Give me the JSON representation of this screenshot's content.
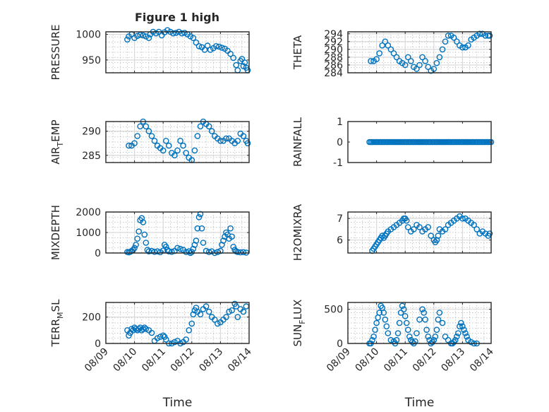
{
  "figure": {
    "title": "Figure 1 high"
  },
  "chart_data": [
    {
      "type": "scatter",
      "title": "Figure 1 high",
      "ylabel": "PRESSURE",
      "xlabel": "",
      "ylim": [
        925,
        1005
      ],
      "yticks": [
        950,
        1000
      ],
      "ytick_labels": [
        "950",
        "1000"
      ],
      "xlim": [
        "08/09",
        "08/14"
      ],
      "show_xticklabels": false,
      "grid": true,
      "color": "#0072BD",
      "x": [
        9.75,
        9.8,
        9.9,
        10.0,
        10.1,
        10.2,
        10.3,
        10.4,
        10.5,
        10.55,
        10.65,
        10.75,
        10.85,
        10.95,
        11.05,
        11.15,
        11.25,
        11.35,
        11.45,
        11.55,
        11.65,
        11.75,
        11.85,
        11.95,
        12.05,
        12.15,
        12.25,
        12.35,
        12.45,
        12.55,
        12.65,
        12.75,
        12.85,
        12.95,
        13.05,
        13.15,
        13.25,
        13.35,
        13.45,
        13.55,
        13.6,
        13.7,
        13.75,
        13.8,
        13.85,
        13.9,
        13.95
      ],
      "y": [
        990,
        996,
        1000,
        993,
        997,
        999,
        998,
        996,
        993,
        1000,
        1005,
        1002,
        1005,
        998,
        1004,
        1008,
        1005,
        1002,
        1003,
        1005,
        1002,
        1003,
        1000,
        996,
        993,
        984,
        977,
        975,
        970,
        978,
        970,
        973,
        977,
        976,
        974,
        972,
        968,
        962,
        954,
        940,
        930,
        948,
        952,
        938,
        945,
        935,
        930
      ]
    },
    {
      "type": "scatter",
      "ylabel": "THETA",
      "xlabel": "",
      "ylim": [
        284,
        294.5
      ],
      "yticks": [
        284,
        286,
        288,
        290,
        292,
        294
      ],
      "ytick_labels": [
        "284",
        "286",
        "288",
        "290",
        "292",
        "294"
      ],
      "xlim": [
        "08/09",
        "08/14"
      ],
      "show_xticklabels": false,
      "grid": true,
      "color": "#0072BD",
      "x": [
        9.8,
        9.9,
        10.0,
        10.1,
        10.2,
        10.3,
        10.4,
        10.5,
        10.6,
        10.7,
        10.8,
        10.9,
        11.0,
        11.1,
        11.2,
        11.3,
        11.4,
        11.5,
        11.6,
        11.7,
        11.8,
        11.9,
        12.0,
        12.1,
        12.2,
        12.3,
        12.4,
        12.5,
        12.6,
        12.7,
        12.8,
        12.9,
        13.0,
        13.1,
        13.2,
        13.3,
        13.4,
        13.5,
        13.6,
        13.7,
        13.8,
        13.9,
        13.95
      ],
      "y": [
        287,
        287,
        287.5,
        289,
        291,
        292,
        291,
        290,
        289,
        288,
        287,
        286.5,
        286,
        288,
        287,
        285.5,
        285,
        286,
        288,
        287,
        285.5,
        284.5,
        285,
        286.5,
        288,
        290,
        292,
        293.5,
        293.5,
        293,
        292,
        291,
        290.5,
        290.5,
        291,
        292.5,
        293,
        293.5,
        294,
        294,
        293.5,
        293.5,
        293.5
      ]
    },
    {
      "type": "scatter",
      "ylabel": "AIR_TEMP",
      "xlabel": "",
      "ylim": [
        283.5,
        292
      ],
      "yticks": [
        285,
        290
      ],
      "ytick_labels": [
        "285",
        "290"
      ],
      "xlim": [
        "08/09",
        "08/14"
      ],
      "show_xticklabels": false,
      "grid": true,
      "color": "#0072BD",
      "x": [
        9.8,
        9.9,
        10.0,
        10.1,
        10.2,
        10.3,
        10.4,
        10.5,
        10.6,
        10.7,
        10.8,
        10.9,
        11.0,
        11.1,
        11.2,
        11.3,
        11.4,
        11.5,
        11.6,
        11.7,
        11.8,
        11.9,
        12.0,
        12.1,
        12.2,
        12.3,
        12.4,
        12.5,
        12.6,
        12.7,
        12.8,
        12.9,
        13.0,
        13.1,
        13.2,
        13.3,
        13.4,
        13.5,
        13.6,
        13.7,
        13.8,
        13.9,
        13.95
      ],
      "y": [
        287,
        287,
        287.5,
        289,
        291,
        292,
        291,
        290,
        289,
        288,
        287,
        286.5,
        286,
        288,
        287,
        285.5,
        285,
        286,
        288,
        287,
        285.5,
        284.5,
        284,
        286,
        289,
        291,
        292,
        291.5,
        291,
        290,
        289,
        288.5,
        288,
        288,
        288.5,
        288.5,
        288,
        287.5,
        288,
        289.5,
        289,
        288,
        287.5
      ]
    },
    {
      "type": "scatter",
      "ylabel": "RAINFALL",
      "xlabel": "",
      "ylim": [
        -1,
        1
      ],
      "yticks": [
        -1,
        0,
        1
      ],
      "ytick_labels": [
        "-1",
        "0",
        "1"
      ],
      "xlim": [
        "08/09",
        "08/14"
      ],
      "show_xticklabels": false,
      "grid": false,
      "color": "#0072BD",
      "x": [
        9.75,
        9.8,
        9.85,
        9.9,
        9.95,
        10.0,
        10.05,
        10.1,
        10.15,
        10.2,
        10.25,
        10.3,
        10.35,
        10.4,
        10.45,
        10.5,
        10.55,
        10.6,
        10.65,
        10.7,
        10.75,
        10.8,
        10.85,
        10.9,
        10.95,
        11.0,
        11.05,
        11.1,
        11.15,
        11.2,
        11.25,
        11.3,
        11.35,
        11.4,
        11.45,
        11.5,
        11.55,
        11.6,
        11.65,
        11.7,
        11.75,
        11.8,
        11.85,
        11.9,
        11.95,
        12.0,
        12.05,
        12.1,
        12.15,
        12.2,
        12.25,
        12.3,
        12.35,
        12.4,
        12.45,
        12.5,
        12.55,
        12.6,
        12.65,
        12.7,
        12.75,
        12.8,
        12.85,
        12.9,
        12.95,
        13.0,
        13.05,
        13.1,
        13.15,
        13.2,
        13.25,
        13.3,
        13.35,
        13.4,
        13.45,
        13.5,
        13.55,
        13.6,
        13.65,
        13.7,
        13.75,
        13.8,
        13.85,
        13.9,
        13.95,
        14.0
      ],
      "y": [
        0,
        0,
        0,
        0,
        0,
        0,
        0,
        0,
        0,
        0,
        0,
        0,
        0,
        0,
        0,
        0,
        0,
        0,
        0,
        0,
        0,
        0,
        0,
        0,
        0,
        0,
        0,
        0,
        0,
        0,
        0,
        0,
        0,
        0,
        0,
        0,
        0,
        0,
        0,
        0,
        0,
        0,
        0,
        0,
        0,
        0,
        0,
        0,
        0,
        0,
        0,
        0,
        0,
        0,
        0,
        0,
        0,
        0,
        0,
        0,
        0,
        0,
        0,
        0,
        0,
        0,
        0,
        0,
        0,
        0,
        0,
        0,
        0,
        0,
        0,
        0,
        0,
        0,
        0,
        0,
        0,
        0,
        0,
        0,
        0,
        0
      ]
    },
    {
      "type": "scatter",
      "ylabel": "MIXDEPTH",
      "xlabel": "",
      "ylim": [
        0,
        2000
      ],
      "yticks": [
        0,
        1000,
        2000
      ],
      "ytick_labels": [
        "0",
        "1000",
        "2000"
      ],
      "xlim": [
        "08/09",
        "08/14"
      ],
      "show_xticklabels": false,
      "grid": true,
      "color": "#0072BD",
      "x": [
        9.75,
        9.8,
        9.85,
        9.9,
        9.95,
        10.0,
        10.05,
        10.1,
        10.15,
        10.2,
        10.25,
        10.3,
        10.35,
        10.4,
        10.45,
        10.5,
        10.6,
        10.7,
        10.8,
        10.9,
        11.0,
        11.05,
        11.1,
        11.15,
        11.2,
        11.3,
        11.4,
        11.5,
        11.6,
        11.7,
        11.8,
        11.9,
        11.95,
        12.0,
        12.05,
        12.1,
        12.15,
        12.2,
        12.25,
        12.3,
        12.35,
        12.4,
        12.5,
        12.6,
        12.7,
        12.8,
        12.9,
        13.0,
        13.05,
        13.1,
        13.15,
        13.2,
        13.25,
        13.3,
        13.35,
        13.4,
        13.45,
        13.5,
        13.55,
        13.6,
        13.7,
        13.8,
        13.9
      ],
      "y": [
        50,
        30,
        60,
        100,
        150,
        250,
        400,
        700,
        1050,
        1600,
        1700,
        1500,
        900,
        500,
        150,
        80,
        100,
        60,
        80,
        40,
        120,
        400,
        300,
        150,
        80,
        60,
        100,
        250,
        200,
        150,
        50,
        80,
        0,
        50,
        200,
        400,
        600,
        1200,
        1750,
        1900,
        1200,
        500,
        100,
        50,
        80,
        0,
        50,
        100,
        400,
        600,
        800,
        1000,
        900,
        700,
        1200,
        800,
        300,
        150,
        80,
        50,
        30,
        40,
        20
      ]
    },
    {
      "type": "scatter",
      "ylabel": "H2OMIXRA",
      "xlabel": "",
      "ylim": [
        5.4,
        7.3
      ],
      "yticks": [
        6,
        7
      ],
      "ytick_labels": [
        "6",
        "7"
      ],
      "xlim": [
        "08/09",
        "08/14"
      ],
      "show_xticklabels": false,
      "grid": true,
      "color": "#0072BD",
      "x": [
        9.85,
        9.9,
        9.95,
        10.0,
        10.05,
        10.1,
        10.15,
        10.2,
        10.25,
        10.3,
        10.35,
        10.4,
        10.5,
        10.6,
        10.7,
        10.8,
        10.9,
        10.95,
        11.0,
        11.05,
        11.1,
        11.2,
        11.3,
        11.4,
        11.5,
        11.6,
        11.7,
        11.8,
        11.9,
        12.0,
        12.05,
        12.1,
        12.15,
        12.2,
        12.3,
        12.4,
        12.5,
        12.6,
        12.7,
        12.8,
        12.9,
        13.0,
        13.1,
        13.2,
        13.3,
        13.4,
        13.5,
        13.6,
        13.7,
        13.8,
        13.9,
        13.95
      ],
      "y": [
        5.5,
        5.6,
        5.7,
        5.8,
        5.9,
        6.0,
        6.1,
        6.2,
        6.1,
        6.2,
        6.3,
        6.4,
        6.5,
        6.6,
        6.7,
        6.8,
        6.9,
        7.0,
        7.0,
        6.9,
        6.6,
        6.4,
        6.5,
        6.7,
        6.6,
        6.4,
        6.5,
        6.6,
        6.2,
        6.0,
        5.9,
        6.0,
        6.2,
        6.5,
        6.4,
        6.5,
        6.7,
        6.8,
        6.9,
        7.0,
        7.1,
        7.0,
        7.0,
        6.9,
        6.8,
        6.7,
        6.5,
        6.3,
        6.4,
        6.3,
        6.2,
        6.3
      ]
    },
    {
      "type": "scatter",
      "ylabel": "TERR_MSL",
      "xlabel": "Time",
      "ylim": [
        0,
        310
      ],
      "yticks": [
        0,
        200
      ],
      "ytick_labels": [
        "0",
        "200"
      ],
      "xlim": [
        "08/09",
        "08/14"
      ],
      "x_ticks": [
        "08/09",
        "08/10",
        "08/11",
        "08/12",
        "08/13",
        "08/14"
      ],
      "show_xticklabels": true,
      "grid": true,
      "color": "#0072BD",
      "x": [
        9.75,
        9.8,
        9.85,
        9.9,
        9.95,
        10.0,
        10.05,
        10.1,
        10.15,
        10.2,
        10.25,
        10.3,
        10.35,
        10.4,
        10.5,
        10.6,
        10.7,
        10.8,
        10.9,
        11.0,
        11.05,
        11.1,
        11.2,
        11.3,
        11.4,
        11.5,
        11.6,
        11.7,
        11.8,
        11.9,
        12.0,
        12.05,
        12.1,
        12.15,
        12.2,
        12.3,
        12.4,
        12.5,
        12.6,
        12.7,
        12.8,
        12.9,
        13.0,
        13.1,
        13.2,
        13.3,
        13.4,
        13.5,
        13.55,
        13.6,
        13.7,
        13.8,
        13.9
      ],
      "y": [
        100,
        60,
        80,
        110,
        100,
        120,
        110,
        100,
        110,
        120,
        100,
        110,
        120,
        110,
        100,
        80,
        20,
        40,
        50,
        60,
        50,
        30,
        0,
        0,
        10,
        20,
        0,
        10,
        30,
        100,
        150,
        220,
        250,
        270,
        240,
        220,
        260,
        280,
        240,
        200,
        180,
        150,
        160,
        180,
        200,
        240,
        250,
        300,
        280,
        200,
        260,
        240,
        280
      ]
    },
    {
      "type": "scatter",
      "ylabel": "SUN_FLUX",
      "xlabel": "Time",
      "ylim": [
        0,
        600
      ],
      "yticks": [
        0,
        500
      ],
      "ytick_labels": [
        "0",
        "500"
      ],
      "xlim": [
        "08/09",
        "08/14"
      ],
      "x_ticks": [
        "08/09",
        "08/10",
        "08/11",
        "08/12",
        "08/13",
        "08/14"
      ],
      "show_xticklabels": true,
      "grid": true,
      "color": "#0072BD",
      "x": [
        9.75,
        9.8,
        9.85,
        9.9,
        9.95,
        10.0,
        10.05,
        10.1,
        10.15,
        10.2,
        10.25,
        10.3,
        10.35,
        10.4,
        10.5,
        10.6,
        10.65,
        10.7,
        10.75,
        10.8,
        10.85,
        10.9,
        10.95,
        11.0,
        11.05,
        11.1,
        11.15,
        11.2,
        11.25,
        11.3,
        11.35,
        11.4,
        11.5,
        11.6,
        11.65,
        11.7,
        11.75,
        11.8,
        11.85,
        11.9,
        11.95,
        12.0,
        12.05,
        12.1,
        12.15,
        12.2,
        12.3,
        12.4,
        12.5,
        12.6,
        12.65,
        12.7,
        12.75,
        12.8,
        12.85,
        12.9,
        12.95,
        13.0,
        13.05,
        13.1,
        13.15,
        13.2,
        13.3,
        13.4,
        13.5
      ],
      "y": [
        0,
        0,
        50,
        100,
        200,
        300,
        380,
        450,
        550,
        520,
        450,
        350,
        250,
        150,
        50,
        30,
        0,
        50,
        150,
        300,
        450,
        550,
        500,
        400,
        300,
        200,
        100,
        50,
        20,
        0,
        30,
        150,
        350,
        500,
        450,
        350,
        200,
        100,
        50,
        0,
        20,
        50,
        100,
        200,
        350,
        450,
        300,
        100,
        50,
        0,
        0,
        20,
        50,
        100,
        150,
        250,
        300,
        250,
        200,
        150,
        100,
        50,
        20,
        0,
        0
      ]
    }
  ]
}
